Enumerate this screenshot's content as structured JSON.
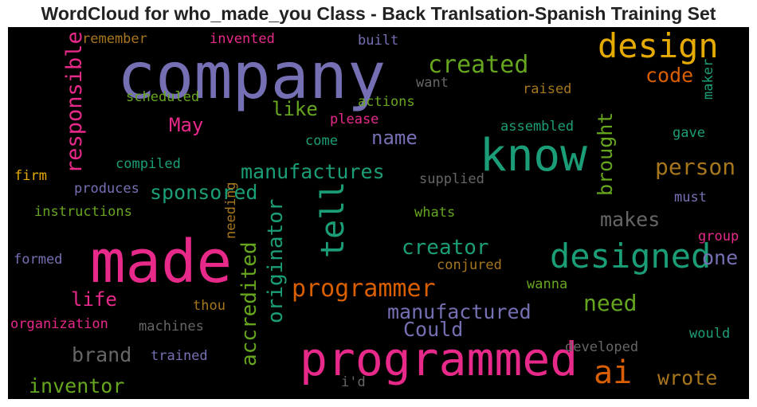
{
  "chart_data": {
    "type": "wordcloud",
    "title": "WordCloud for who_made_you Class - Back Tranlsation-Spanish Training Set",
    "background": "#000000",
    "words": [
      {
        "text": "company",
        "color": "#7570b3"
      },
      {
        "text": "made",
        "color": "#e7298a"
      },
      {
        "text": "programmed",
        "color": "#e7298a"
      },
      {
        "text": "know",
        "color": "#1b9e77"
      },
      {
        "text": "designed",
        "color": "#1b9e77"
      },
      {
        "text": "design",
        "color": "#e6ab02"
      },
      {
        "text": "tell",
        "color": "#1b9e77"
      },
      {
        "text": "ai",
        "color": "#d95f02"
      },
      {
        "text": "created",
        "color": "#66a61e"
      },
      {
        "text": "programmer",
        "color": "#d95f02"
      },
      {
        "text": "responsible",
        "color": "#e7298a"
      },
      {
        "text": "originator",
        "color": "#1b9e77"
      },
      {
        "text": "accredited",
        "color": "#66a61e"
      },
      {
        "text": "person",
        "color": "#a6761d"
      },
      {
        "text": "need",
        "color": "#66a61e"
      },
      {
        "text": "creator",
        "color": "#1b9e77"
      },
      {
        "text": "manufactures",
        "color": "#1b9e77"
      },
      {
        "text": "manufactured",
        "color": "#7570b3"
      },
      {
        "text": "brought",
        "color": "#66a61e"
      },
      {
        "text": "code",
        "color": "#d95f02"
      },
      {
        "text": "sponsored",
        "color": "#1b9e77"
      },
      {
        "text": "inventor",
        "color": "#66a61e"
      },
      {
        "text": "wrote",
        "color": "#a6761d"
      },
      {
        "text": "brand",
        "color": "#666666"
      },
      {
        "text": "Could",
        "color": "#7570b3"
      },
      {
        "text": "makes",
        "color": "#666666"
      },
      {
        "text": "one",
        "color": "#7570b3"
      },
      {
        "text": "like",
        "color": "#66a61e"
      },
      {
        "text": "name",
        "color": "#7570b3"
      },
      {
        "text": "May",
        "color": "#e7298a"
      },
      {
        "text": "life",
        "color": "#e7298a"
      },
      {
        "text": "remember",
        "color": "#a6761d"
      },
      {
        "text": "invented",
        "color": "#e7298a"
      },
      {
        "text": "built",
        "color": "#7570b3"
      },
      {
        "text": "want",
        "color": "#666666"
      },
      {
        "text": "raised",
        "color": "#a6761d"
      },
      {
        "text": "maker",
        "color": "#1b9e77"
      },
      {
        "text": "scheduled",
        "color": "#66a61e"
      },
      {
        "text": "actions",
        "color": "#66a61e"
      },
      {
        "text": "please",
        "color": "#e7298a"
      },
      {
        "text": "assembled",
        "color": "#1b9e77"
      },
      {
        "text": "gave",
        "color": "#1b9e77"
      },
      {
        "text": "come",
        "color": "#1b9e77"
      },
      {
        "text": "compiled",
        "color": "#1b9e77"
      },
      {
        "text": "supplied",
        "color": "#666666"
      },
      {
        "text": "firm",
        "color": "#e6ab02"
      },
      {
        "text": "produces",
        "color": "#7570b3"
      },
      {
        "text": "must",
        "color": "#7570b3"
      },
      {
        "text": "instructions",
        "color": "#66a61e"
      },
      {
        "text": "needing",
        "color": "#a6761d"
      },
      {
        "text": "whats",
        "color": "#66a61e"
      },
      {
        "text": "group",
        "color": "#e7298a"
      },
      {
        "text": "formed",
        "color": "#7570b3"
      },
      {
        "text": "conjured",
        "color": "#a6761d"
      },
      {
        "text": "wanna",
        "color": "#66a61e"
      },
      {
        "text": "thou",
        "color": "#a6761d"
      },
      {
        "text": "organization",
        "color": "#e7298a"
      },
      {
        "text": "machines",
        "color": "#666666"
      },
      {
        "text": "would",
        "color": "#1b9e77"
      },
      {
        "text": "developed",
        "color": "#666666"
      },
      {
        "text": "trained",
        "color": "#7570b3"
      },
      {
        "text": "i'd",
        "color": "#666666"
      }
    ]
  }
}
